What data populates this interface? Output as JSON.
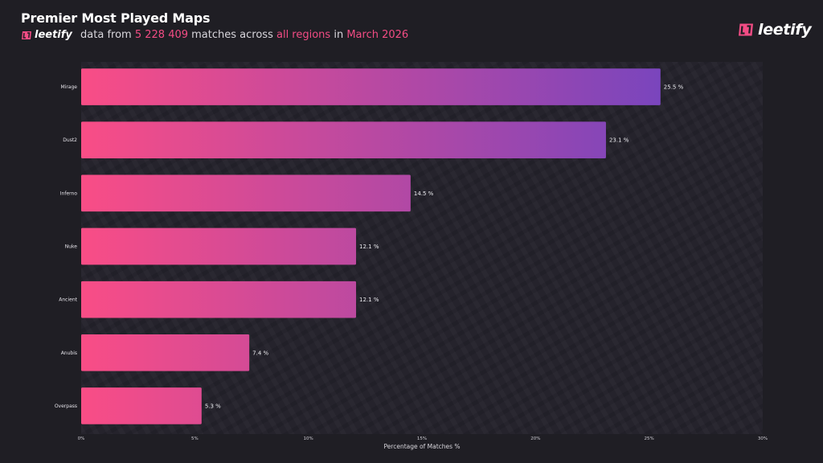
{
  "header": {
    "title": "Premier Most Played Maps",
    "brand": "leetify",
    "subtitle_parts": {
      "prefix": "data from ",
      "matches": "5 228 409",
      "mid": " matches across ",
      "regions": "all regions",
      "in": " in ",
      "period": "March 2026"
    }
  },
  "colors": {
    "accent": "#f24c84",
    "bar_start": "#f94d86",
    "bar_end": "#7a45bd",
    "background": "#1f1e24"
  },
  "chart_data": {
    "type": "bar",
    "orientation": "horizontal",
    "title": "Premier Most Played Maps",
    "categories": [
      "Mirage",
      "Dust2",
      "Inferno",
      "Nuke",
      "Ancient",
      "Anubis",
      "Overpass"
    ],
    "values": [
      25.5,
      23.1,
      14.5,
      12.1,
      12.1,
      7.4,
      5.3
    ],
    "value_labels": [
      "25.5 %",
      "23.1 %",
      "14.5 %",
      "12.1 %",
      "12.1 %",
      "7.4 %",
      "5.3 %"
    ],
    "xlabel": "Percentage of Matches %",
    "ylabel": "",
    "xlim": [
      0,
      30
    ],
    "xticks": [
      0,
      5,
      10,
      15,
      20,
      25,
      30
    ],
    "xtick_labels": [
      "0%",
      "5%",
      "10%",
      "15%",
      "20%",
      "25%",
      "30%"
    ],
    "grid": false,
    "legend": "none"
  }
}
